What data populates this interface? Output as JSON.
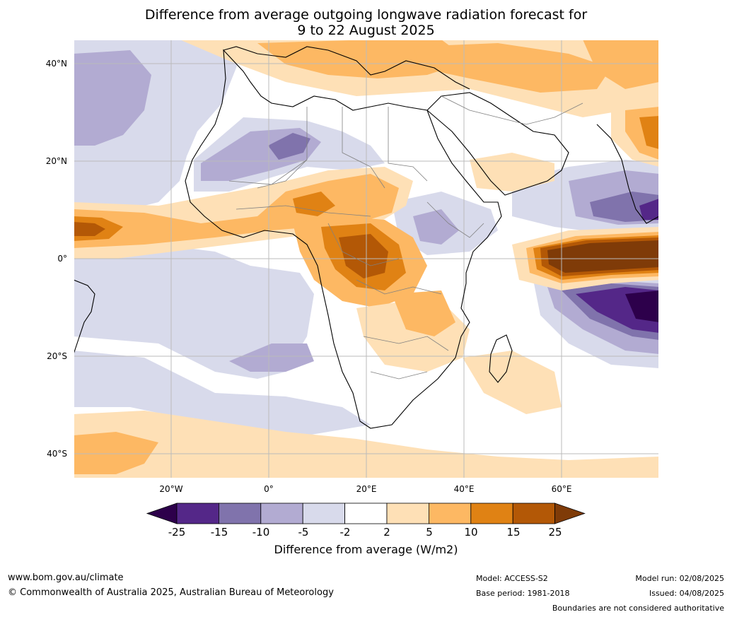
{
  "title": {
    "line1": "Difference from average outgoing longwave radiation forecast for",
    "line2": "9 to 22 August 2025"
  },
  "map": {
    "lat_labels": [
      "40°N",
      "20°N",
      "0°",
      "20°S",
      "40°S"
    ],
    "lon_labels": [
      "20°W",
      "0°",
      "20°E",
      "40°E",
      "60°E"
    ],
    "colors": {
      "ocean_bg": "#ffffff",
      "coast": "#000000",
      "border": "#808080",
      "grid": "#bbbbbb"
    }
  },
  "colorbar": {
    "ticks": [
      "-25",
      "-15",
      "-10",
      "-5",
      "-2",
      "2",
      "5",
      "10",
      "15",
      "25"
    ],
    "colors": [
      "#2d004b",
      "#542788",
      "#8073ac",
      "#b2abd2",
      "#d8daeb",
      "#ffffff",
      "#fee0b6",
      "#fdb863",
      "#e08214",
      "#b35806",
      "#7f3b08"
    ],
    "label": "Difference from average (W/m2)"
  },
  "footer": {
    "website": "www.bom.gov.au/climate",
    "copyright": "© Commonwealth of Australia 2025, Australian Bureau of Meteorology",
    "model": "Model: ACCESS-S2",
    "base_period": "Base period: 1981-2018",
    "model_run": "Model run: 02/08/2025",
    "issued": "Issued: 04/08/2025",
    "disclaimer": "Boundaries are not considered authoritative"
  }
}
